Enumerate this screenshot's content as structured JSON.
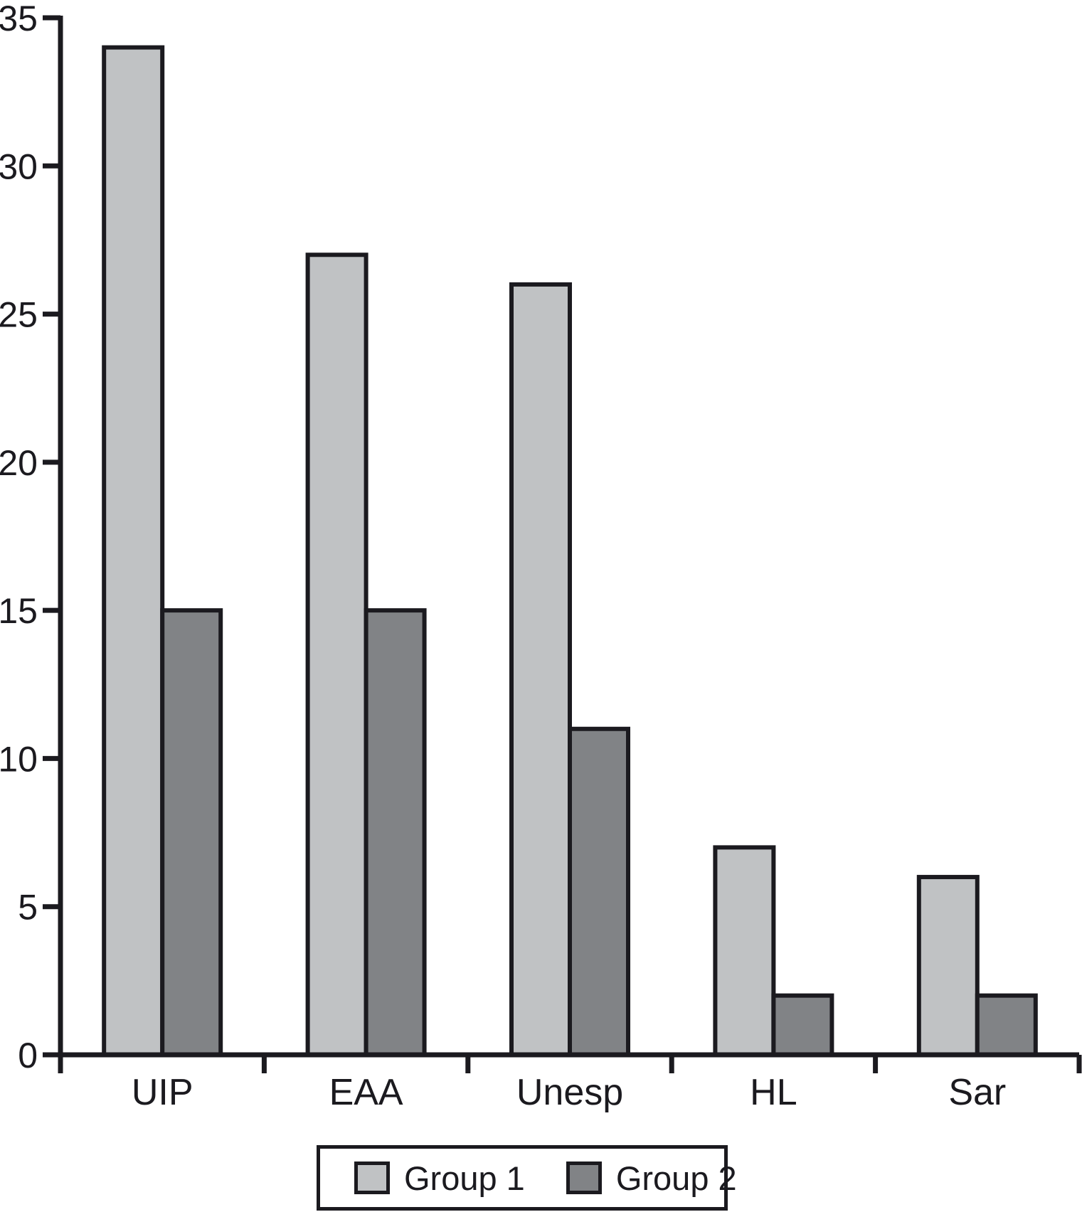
{
  "chart_data": {
    "type": "bar",
    "categories": [
      "UIP",
      "EAA",
      "Unesp",
      "HL",
      "Sar"
    ],
    "series": [
      {
        "name": "Group 1",
        "color": "#c0c2c4",
        "values": [
          34,
          27,
          26,
          7,
          6
        ]
      },
      {
        "name": "Group 2",
        "color": "#818386",
        "values": [
          15,
          15,
          11,
          2,
          2
        ]
      }
    ],
    "title": "",
    "xlabel": "",
    "ylabel": "",
    "ylim": [
      0,
      35
    ],
    "yticks": [
      0,
      5,
      10,
      15,
      20,
      25,
      30,
      35
    ],
    "grid": false,
    "legend_position": "bottom",
    "axis_color": "#1b1a1f",
    "bar_border_color": "#1b1a1f"
  }
}
